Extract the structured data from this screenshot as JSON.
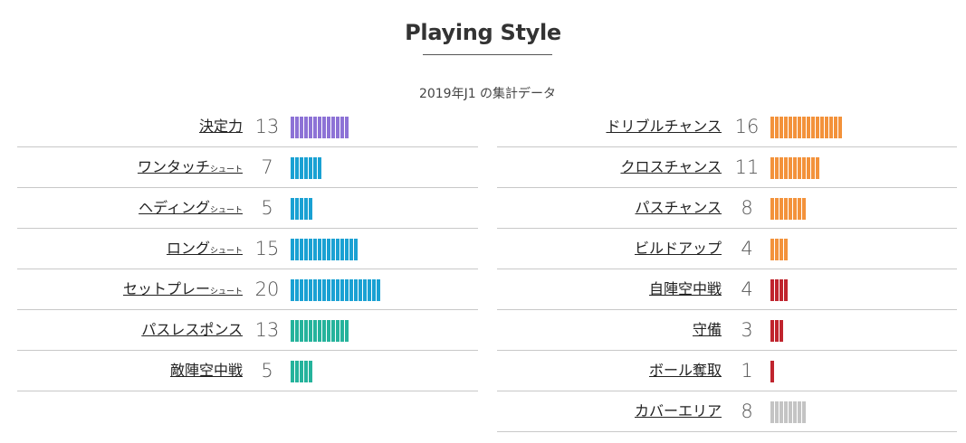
{
  "title": "Playing Style",
  "subtitle": "2019年J1 の集計データ",
  "colors": {
    "purple": "#8d72d6",
    "blue": "#1aa1d3",
    "teal": "#25b39c",
    "orange": "#f3923b",
    "red": "#c0242e",
    "gray": "#c4c4c4"
  },
  "chart_data": {
    "type": "bar",
    "orientation": "horizontal",
    "title": "Playing Style",
    "subtitle": "2019年J1 の集計データ",
    "panels": [
      {
        "side": "left",
        "rows": [
          {
            "label": "決定力",
            "suffix": "",
            "value": 13,
            "color": "purple"
          },
          {
            "label": "ワンタッチ",
            "suffix": "シュート",
            "value": 7,
            "color": "blue"
          },
          {
            "label": "ヘディング",
            "suffix": "シュート",
            "value": 5,
            "color": "blue"
          },
          {
            "label": "ロング",
            "suffix": "シュート",
            "value": 15,
            "color": "blue"
          },
          {
            "label": "セットプレー",
            "suffix": "シュート",
            "value": 20,
            "color": "blue"
          },
          {
            "label": "パスレスポンス",
            "suffix": "",
            "value": 13,
            "color": "teal"
          },
          {
            "label": "敵陣空中戦",
            "suffix": "",
            "value": 5,
            "color": "teal"
          }
        ]
      },
      {
        "side": "right",
        "rows": [
          {
            "label": "ドリブルチャンス",
            "suffix": "",
            "value": 16,
            "color": "orange"
          },
          {
            "label": "クロスチャンス",
            "suffix": "",
            "value": 11,
            "color": "orange"
          },
          {
            "label": "パスチャンス",
            "suffix": "",
            "value": 8,
            "color": "orange"
          },
          {
            "label": "ビルドアップ",
            "suffix": "",
            "value": 4,
            "color": "orange"
          },
          {
            "label": "自陣空中戦",
            "suffix": "",
            "value": 4,
            "color": "red"
          },
          {
            "label": "守備",
            "suffix": "",
            "value": 3,
            "color": "red"
          },
          {
            "label": "ボール奪取",
            "suffix": "",
            "value": 1,
            "color": "red"
          },
          {
            "label": "カバーエリア",
            "suffix": "",
            "value": 8,
            "color": "gray"
          }
        ]
      }
    ]
  }
}
